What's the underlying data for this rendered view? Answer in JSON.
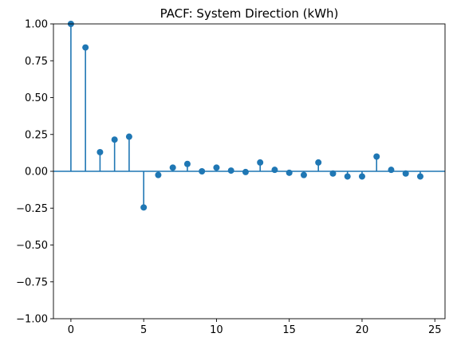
{
  "chart_data": {
    "type": "scatter",
    "subtype": "stem",
    "title": "PACF: System Direction (kWh)",
    "xlabel": "",
    "ylabel": "",
    "xlim": [
      -1.2,
      25.7
    ],
    "ylim": [
      -1.0,
      1.0
    ],
    "x_ticks": [
      0,
      5,
      10,
      15,
      20,
      25
    ],
    "x_tick_labels": [
      "0",
      "5",
      "10",
      "15",
      "20",
      "25"
    ],
    "y_ticks": [
      -1.0,
      -0.75,
      -0.5,
      -0.25,
      0.0,
      0.25,
      0.5,
      0.75,
      1.0
    ],
    "y_tick_labels": [
      "−1.00",
      "−0.75",
      "−0.50",
      "−0.25",
      "0.00",
      "0.25",
      "0.50",
      "0.75",
      "1.00"
    ],
    "grid": false,
    "x": [
      0,
      1,
      2,
      3,
      4,
      5,
      6,
      7,
      8,
      9,
      10,
      11,
      12,
      13,
      14,
      15,
      16,
      17,
      18,
      19,
      20,
      21,
      22,
      23,
      24
    ],
    "values": [
      1.0,
      0.84,
      0.13,
      0.215,
      0.235,
      -0.245,
      -0.025,
      0.025,
      0.05,
      0.0,
      0.025,
      0.005,
      -0.005,
      0.06,
      0.01,
      -0.01,
      -0.025,
      0.06,
      -0.015,
      -0.035,
      -0.035,
      0.1,
      0.01,
      -0.015,
      -0.035
    ],
    "color": "#1f77b4"
  }
}
